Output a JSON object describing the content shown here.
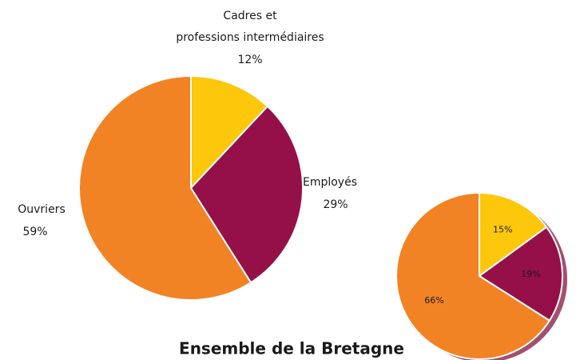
{
  "chart_data": [
    {
      "type": "pie",
      "categories": [
        [
          "Cadres et",
          "professions intermédiaires"
        ],
        [
          "Employés"
        ],
        [
          "Ouvriers"
        ]
      ],
      "values": [
        12,
        29,
        59
      ],
      "value_labels": [
        "12%",
        "29%",
        "59%"
      ],
      "colors": [
        "#fdc70c",
        "#951049",
        "#f28324"
      ]
    },
    {
      "type": "pie",
      "title": "Ensemble de la Bretagne",
      "values": [
        15,
        19,
        66
      ],
      "value_labels": [
        "15%",
        "19%",
        "66%"
      ],
      "colors": [
        "#fdc70c",
        "#951049",
        "#f28324"
      ],
      "shadow": true
    }
  ]
}
